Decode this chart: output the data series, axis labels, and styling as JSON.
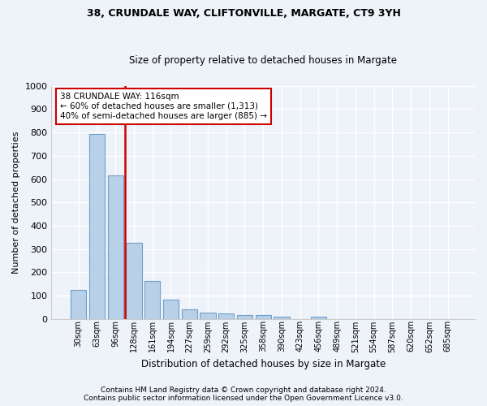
{
  "title1": "38, CRUNDALE WAY, CLIFTONVILLE, MARGATE, CT9 3YH",
  "title2": "Size of property relative to detached houses in Margate",
  "xlabel": "Distribution of detached houses by size in Margate",
  "ylabel": "Number of detached properties",
  "categories": [
    "30sqm",
    "63sqm",
    "96sqm",
    "128sqm",
    "161sqm",
    "194sqm",
    "227sqm",
    "259sqm",
    "292sqm",
    "325sqm",
    "358sqm",
    "390sqm",
    "423sqm",
    "456sqm",
    "489sqm",
    "521sqm",
    "554sqm",
    "587sqm",
    "620sqm",
    "652sqm",
    "685sqm"
  ],
  "values": [
    125,
    795,
    615,
    328,
    163,
    82,
    40,
    27,
    24,
    16,
    15,
    8,
    0,
    10,
    0,
    0,
    0,
    0,
    0,
    0,
    0
  ],
  "bar_color": "#b8d0e8",
  "bar_edge_color": "#6fa0c8",
  "highlight_color": "#cc0000",
  "red_line_x": 2.5,
  "annotation_line1": "38 CRUNDALE WAY: 116sqm",
  "annotation_line2": "← 60% of detached houses are smaller (1,313)",
  "annotation_line3": "40% of semi-detached houses are larger (885) →",
  "annotation_box_color": "#ffffff",
  "annotation_border_color": "#cc0000",
  "ylim": [
    0,
    1000
  ],
  "yticks": [
    0,
    100,
    200,
    300,
    400,
    500,
    600,
    700,
    800,
    900,
    1000
  ],
  "footer1": "Contains HM Land Registry data © Crown copyright and database right 2024.",
  "footer2": "Contains public sector information licensed under the Open Government Licence v3.0.",
  "bg_color": "#eef2f9",
  "grid_color": "#d8dde8"
}
